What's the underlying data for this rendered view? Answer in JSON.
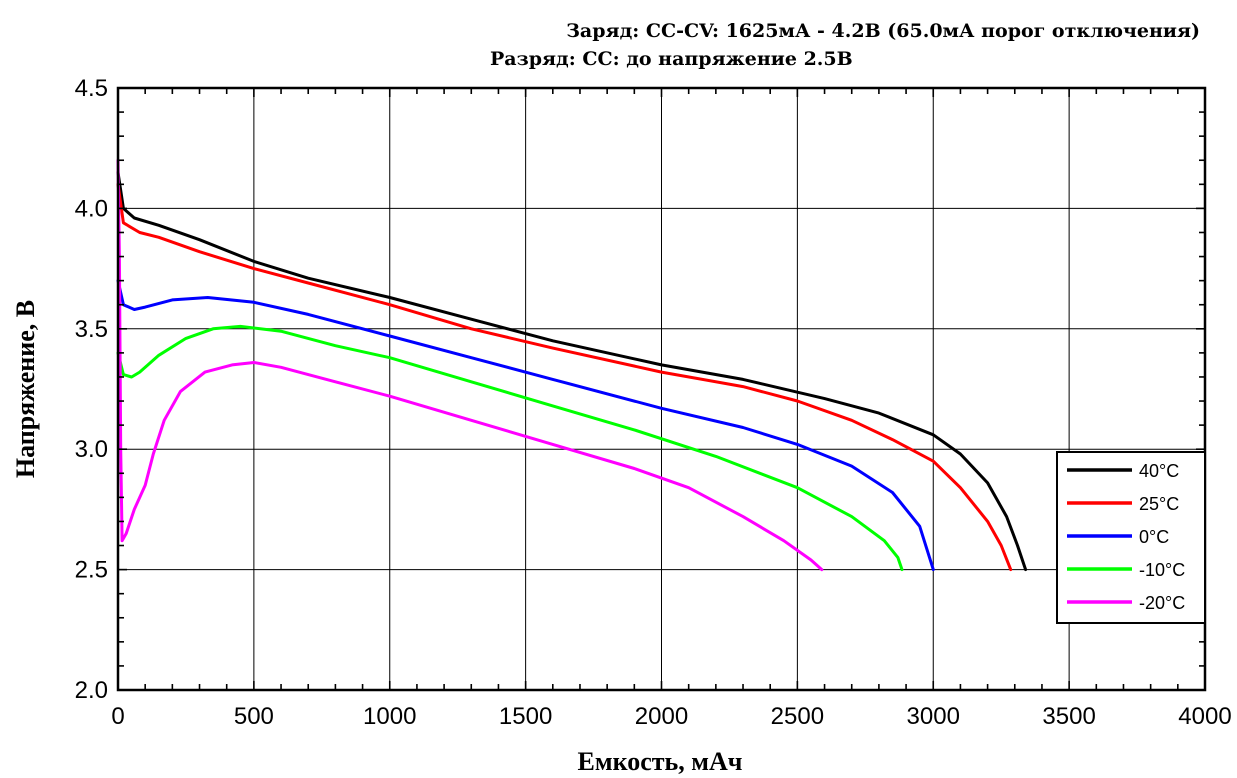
{
  "chart_data": {
    "type": "line",
    "title": "Заряд: CC-CV: 1625мА - 4.2В (65.0мА порог отключения)",
    "subtitle": "Разряд: CC: до напряжение 2.5В",
    "xlabel": "Емкость, мАч",
    "ylabel": "Напряжение, В",
    "xlim": [
      0,
      4000
    ],
    "ylim": [
      2.0,
      4.5
    ],
    "x_ticks": [
      "0",
      "500",
      "1000",
      "1500",
      "2000",
      "2500",
      "3000",
      "3500",
      "4000"
    ],
    "y_ticks": [
      "2.0",
      "2.5",
      "3.0",
      "3.5",
      "4.0",
      "4.5"
    ],
    "grid": true,
    "legend_position": "right",
    "series": [
      {
        "name": "40°C",
        "color": "#000000",
        "points": [
          [
            0,
            4.15
          ],
          [
            20,
            4.0
          ],
          [
            60,
            3.96
          ],
          [
            150,
            3.93
          ],
          [
            300,
            3.87
          ],
          [
            500,
            3.78
          ],
          [
            700,
            3.71
          ],
          [
            1000,
            3.63
          ],
          [
            1300,
            3.54
          ],
          [
            1600,
            3.45
          ],
          [
            2000,
            3.35
          ],
          [
            2300,
            3.29
          ],
          [
            2600,
            3.21
          ],
          [
            2800,
            3.15
          ],
          [
            3000,
            3.06
          ],
          [
            3100,
            2.98
          ],
          [
            3200,
            2.86
          ],
          [
            3270,
            2.72
          ],
          [
            3310,
            2.6
          ],
          [
            3340,
            2.5
          ]
        ]
      },
      {
        "name": "25°C",
        "color": "#ff0000",
        "points": [
          [
            0,
            4.1
          ],
          [
            20,
            3.94
          ],
          [
            80,
            3.9
          ],
          [
            150,
            3.88
          ],
          [
            300,
            3.82
          ],
          [
            500,
            3.75
          ],
          [
            700,
            3.69
          ],
          [
            1000,
            3.6
          ],
          [
            1300,
            3.5
          ],
          [
            1600,
            3.42
          ],
          [
            2000,
            3.32
          ],
          [
            2300,
            3.26
          ],
          [
            2500,
            3.2
          ],
          [
            2700,
            3.12
          ],
          [
            2850,
            3.04
          ],
          [
            3000,
            2.95
          ],
          [
            3100,
            2.84
          ],
          [
            3200,
            2.7
          ],
          [
            3250,
            2.6
          ],
          [
            3285,
            2.5
          ]
        ]
      },
      {
        "name": "0°C",
        "color": "#0000ff",
        "points": [
          [
            0,
            3.7
          ],
          [
            20,
            3.6
          ],
          [
            60,
            3.58
          ],
          [
            100,
            3.59
          ],
          [
            200,
            3.62
          ],
          [
            330,
            3.63
          ],
          [
            500,
            3.61
          ],
          [
            700,
            3.56
          ],
          [
            1000,
            3.47
          ],
          [
            1300,
            3.38
          ],
          [
            1600,
            3.29
          ],
          [
            2000,
            3.17
          ],
          [
            2300,
            3.09
          ],
          [
            2500,
            3.02
          ],
          [
            2700,
            2.93
          ],
          [
            2850,
            2.82
          ],
          [
            2950,
            2.68
          ],
          [
            3000,
            2.5
          ]
        ]
      },
      {
        "name": "-10°C",
        "color": "#00ff00",
        "points": [
          [
            0,
            3.4
          ],
          [
            20,
            3.31
          ],
          [
            50,
            3.3
          ],
          [
            80,
            3.32
          ],
          [
            150,
            3.39
          ],
          [
            250,
            3.46
          ],
          [
            350,
            3.5
          ],
          [
            450,
            3.51
          ],
          [
            600,
            3.49
          ],
          [
            800,
            3.43
          ],
          [
            1000,
            3.38
          ],
          [
            1300,
            3.28
          ],
          [
            1600,
            3.18
          ],
          [
            1900,
            3.08
          ],
          [
            2200,
            2.97
          ],
          [
            2500,
            2.84
          ],
          [
            2700,
            2.72
          ],
          [
            2820,
            2.62
          ],
          [
            2870,
            2.55
          ],
          [
            2885,
            2.5
          ]
        ]
      },
      {
        "name": "-20°C",
        "color": "#ff00ff",
        "points": [
          [
            0,
            4.2
          ],
          [
            5,
            3.8
          ],
          [
            10,
            3.0
          ],
          [
            15,
            2.62
          ],
          [
            30,
            2.65
          ],
          [
            60,
            2.75
          ],
          [
            100,
            2.85
          ],
          [
            130,
            2.98
          ],
          [
            170,
            3.12
          ],
          [
            230,
            3.24
          ],
          [
            320,
            3.32
          ],
          [
            420,
            3.35
          ],
          [
            500,
            3.36
          ],
          [
            600,
            3.34
          ],
          [
            800,
            3.28
          ],
          [
            1000,
            3.22
          ],
          [
            1300,
            3.12
          ],
          [
            1600,
            3.02
          ],
          [
            1900,
            2.92
          ],
          [
            2100,
            2.84
          ],
          [
            2300,
            2.72
          ],
          [
            2450,
            2.62
          ],
          [
            2550,
            2.54
          ],
          [
            2590,
            2.5
          ]
        ]
      }
    ]
  }
}
